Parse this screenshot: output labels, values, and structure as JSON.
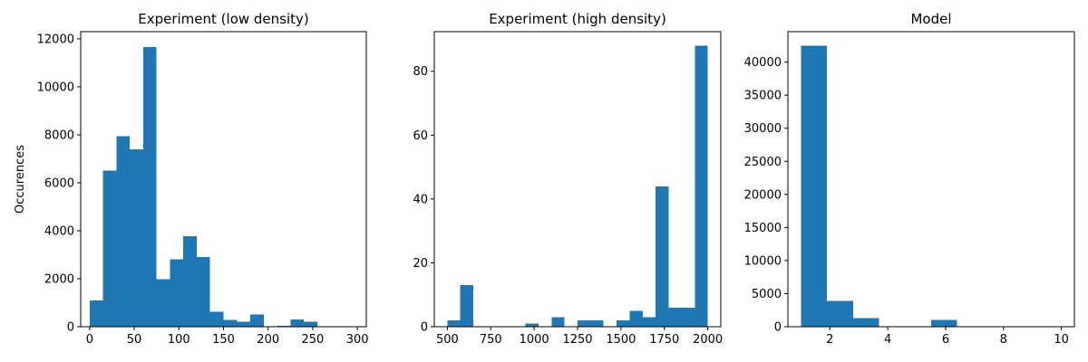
{
  "chart_data": [
    {
      "type": "bar",
      "title": "Experiment (low density)",
      "xlabel": "",
      "ylabel": "Occurences",
      "xlim": [
        -10,
        310
      ],
      "ylim": [
        0,
        12300
      ],
      "xticks": [
        0,
        50,
        100,
        150,
        200,
        250,
        300
      ],
      "yticks": [
        0,
        2000,
        4000,
        6000,
        8000,
        10000,
        12000
      ],
      "color": "#1f77b4",
      "bin_edges": [
        0,
        15,
        30,
        45,
        60,
        75,
        90,
        105,
        120,
        135,
        150,
        165,
        180,
        195,
        210,
        225,
        240,
        255,
        270,
        285,
        300
      ],
      "counts": [
        1100,
        6500,
        7950,
        7400,
        11650,
        1980,
        2820,
        3770,
        2900,
        620,
        290,
        200,
        500,
        0,
        40,
        300,
        200,
        0,
        0,
        0
      ]
    },
    {
      "type": "bar",
      "title": "Experiment (high density)",
      "xlabel": "",
      "ylabel": "",
      "xlim": [
        425,
        2075
      ],
      "ylim": [
        0,
        92.4
      ],
      "xticks": [
        500,
        750,
        1000,
        1250,
        1500,
        1750,
        2000
      ],
      "yticks": [
        0,
        20,
        40,
        60,
        80
      ],
      "color": "#1f77b4",
      "bin_edges": [
        500,
        575,
        650,
        725,
        800,
        875,
        950,
        1025,
        1100,
        1175,
        1250,
        1325,
        1400,
        1475,
        1550,
        1625,
        1700,
        1775,
        1850,
        1925,
        2000
      ],
      "counts": [
        2,
        13,
        0,
        0,
        0,
        0,
        1,
        0,
        3,
        0,
        2,
        2,
        0,
        2,
        5,
        3,
        44,
        6,
        6,
        88
      ]
    },
    {
      "type": "bar",
      "title": "Model",
      "xlabel": "",
      "ylabel": "",
      "xlim": [
        0.55,
        10.45
      ],
      "ylim": [
        0,
        44600
      ],
      "xticks": [
        2,
        4,
        6,
        8,
        10
      ],
      "yticks": [
        0,
        5000,
        10000,
        15000,
        20000,
        25000,
        30000,
        35000,
        40000
      ],
      "color": "#1f77b4",
      "bin_edges": [
        1,
        1.9,
        2.8,
        3.7,
        4.6,
        5.5,
        6.4,
        7.3,
        8.2,
        9.1,
        10
      ],
      "counts": [
        42500,
        3900,
        1300,
        0,
        0,
        1050,
        0,
        0,
        0,
        0
      ]
    }
  ]
}
